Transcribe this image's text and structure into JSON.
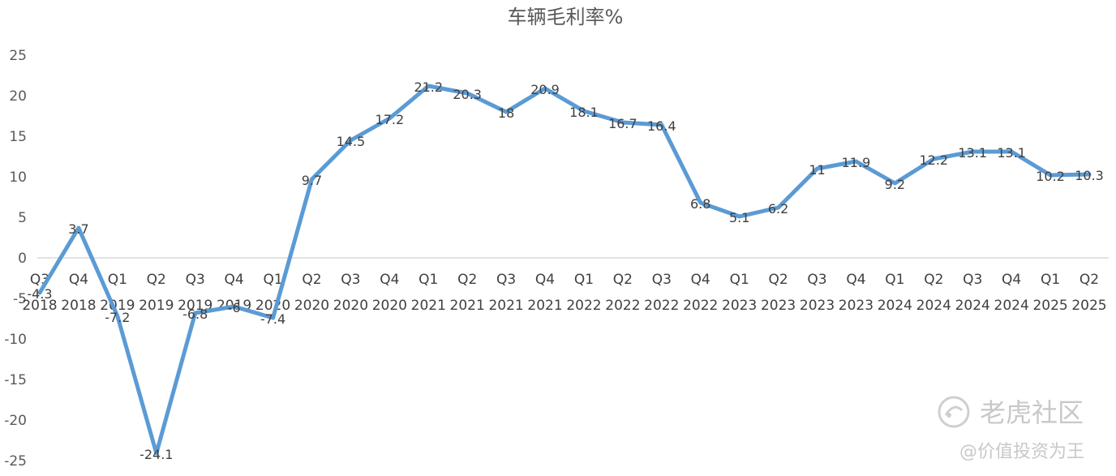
{
  "chart_data": {
    "type": "line",
    "title": "车辆毛利率%",
    "xlabel": "",
    "ylabel": "",
    "ylim": [
      -25,
      25
    ],
    "yticks": [
      "25",
      "20",
      "15",
      "10",
      "5",
      "0",
      "-5",
      "-10",
      "-15",
      "-20",
      "-25"
    ],
    "grid": false,
    "legend": "none",
    "line_color": "#5B9BD5",
    "categories": [
      [
        "Q3",
        "2018"
      ],
      [
        "Q4",
        "2018"
      ],
      [
        "Q1",
        "2019"
      ],
      [
        "Q2",
        "2019"
      ],
      [
        "Q3",
        "2019"
      ],
      [
        "Q4",
        "2019"
      ],
      [
        "Q1",
        "2020"
      ],
      [
        "Q2",
        "2020"
      ],
      [
        "Q3",
        "2020"
      ],
      [
        "Q4",
        "2020"
      ],
      [
        "Q1",
        "2021"
      ],
      [
        "Q2",
        "2021"
      ],
      [
        "Q3",
        "2021"
      ],
      [
        "Q4",
        "2021"
      ],
      [
        "Q1",
        "2022"
      ],
      [
        "Q2",
        "2022"
      ],
      [
        "Q3",
        "2022"
      ],
      [
        "Q4",
        "2022"
      ],
      [
        "Q1",
        "2023"
      ],
      [
        "Q2",
        "2023"
      ],
      [
        "Q3",
        "2023"
      ],
      [
        "Q4",
        "2023"
      ],
      [
        "Q1",
        "2024"
      ],
      [
        "Q2",
        "2024"
      ],
      [
        "Q3",
        "2024"
      ],
      [
        "Q4",
        "2024"
      ],
      [
        "Q1",
        "2025"
      ],
      [
        "Q2",
        "2025"
      ]
    ],
    "series": [
      {
        "values": [
          -4.3,
          3.7,
          -7.2,
          -24.1,
          -6.8,
          -6,
          -7.4,
          9.7,
          14.5,
          17.2,
          21.2,
          20.3,
          18,
          20.9,
          18.1,
          16.7,
          16.4,
          6.8,
          5.1,
          6.2,
          11,
          11.9,
          9.2,
          12.2,
          13.1,
          13.1,
          10.2,
          10.3
        ],
        "labels": [
          "-4.3",
          "3.7",
          "-7.2",
          "-24.1",
          "-6.8",
          "-6",
          "-7.4",
          "9.7",
          "14.5",
          "17.2",
          "21.2",
          "20.3",
          "18",
          "20.9",
          "18.1",
          "16.7",
          "16.4",
          "6.8",
          "5.1",
          "6.2",
          "11",
          "11.9",
          "9.2",
          "12.2",
          "13.1",
          "13.1",
          "10.2",
          "10.3"
        ]
      }
    ]
  },
  "watermark": {
    "logo_text": "老虎社区",
    "author_text": "@价值投资为王"
  }
}
